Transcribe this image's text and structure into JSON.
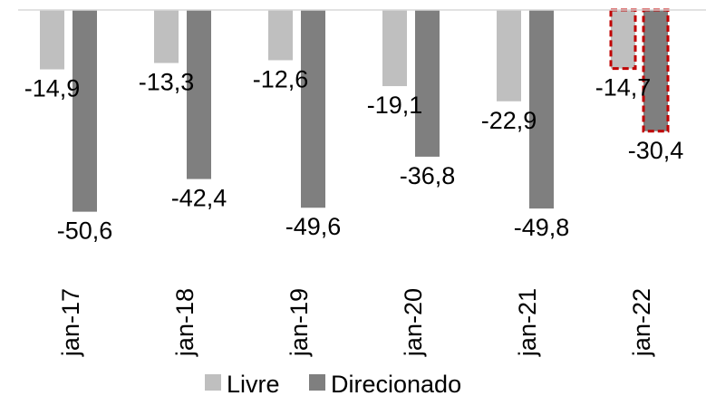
{
  "chart_data": {
    "type": "bar",
    "categories": [
      "jan-17",
      "jan-18",
      "jan-19",
      "jan-20",
      "jan-21",
      "jan-22"
    ],
    "series": [
      {
        "name": "Livre",
        "color": "#bfbfbf",
        "values": [
          -14.9,
          -13.3,
          -12.6,
          -19.1,
          -22.9,
          -14.7
        ],
        "labels": [
          "-14,9",
          "-13,3",
          "-12,6",
          "-19,1",
          "-22,9",
          "-14,7"
        ]
      },
      {
        "name": "Direcionado",
        "color": "#7f7f7f",
        "values": [
          -50.6,
          -42.4,
          -49.6,
          -36.8,
          -49.8,
          -30.4
        ],
        "labels": [
          "-50,6",
          "-42,4",
          "-49,6",
          "-36,8",
          "-49,8",
          "-30,4"
        ]
      }
    ],
    "highlight_category": "jan-22",
    "highlight_color": "#c00000",
    "ylim": [
      -55,
      0
    ],
    "grid": false,
    "legend_position": "bottom"
  }
}
